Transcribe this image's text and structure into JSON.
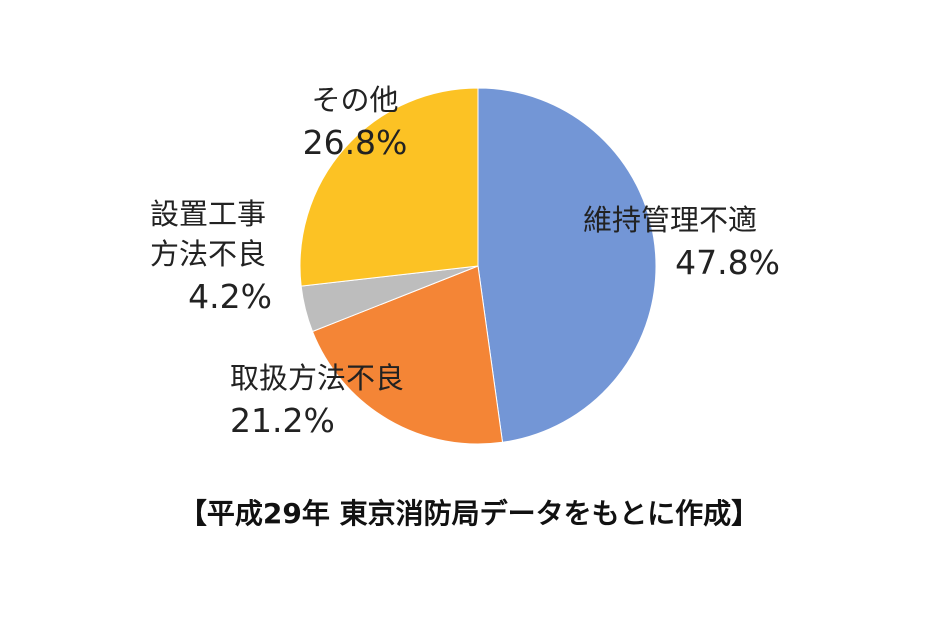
{
  "chart_data": {
    "type": "pie",
    "categories": [
      "維持管理不適",
      "取扱方法不良",
      "設置工事方法不良",
      "その他"
    ],
    "values": [
      47.8,
      21.2,
      4.2,
      26.8
    ],
    "value_labels": [
      "47.8%",
      "21.2%",
      "4.2%",
      "26.8%"
    ],
    "colors": [
      "#7396d6",
      "#f48536",
      "#bdbdbd",
      "#fcc224"
    ],
    "caption": "【平成29年 東京消防局データをもとに作成】"
  }
}
